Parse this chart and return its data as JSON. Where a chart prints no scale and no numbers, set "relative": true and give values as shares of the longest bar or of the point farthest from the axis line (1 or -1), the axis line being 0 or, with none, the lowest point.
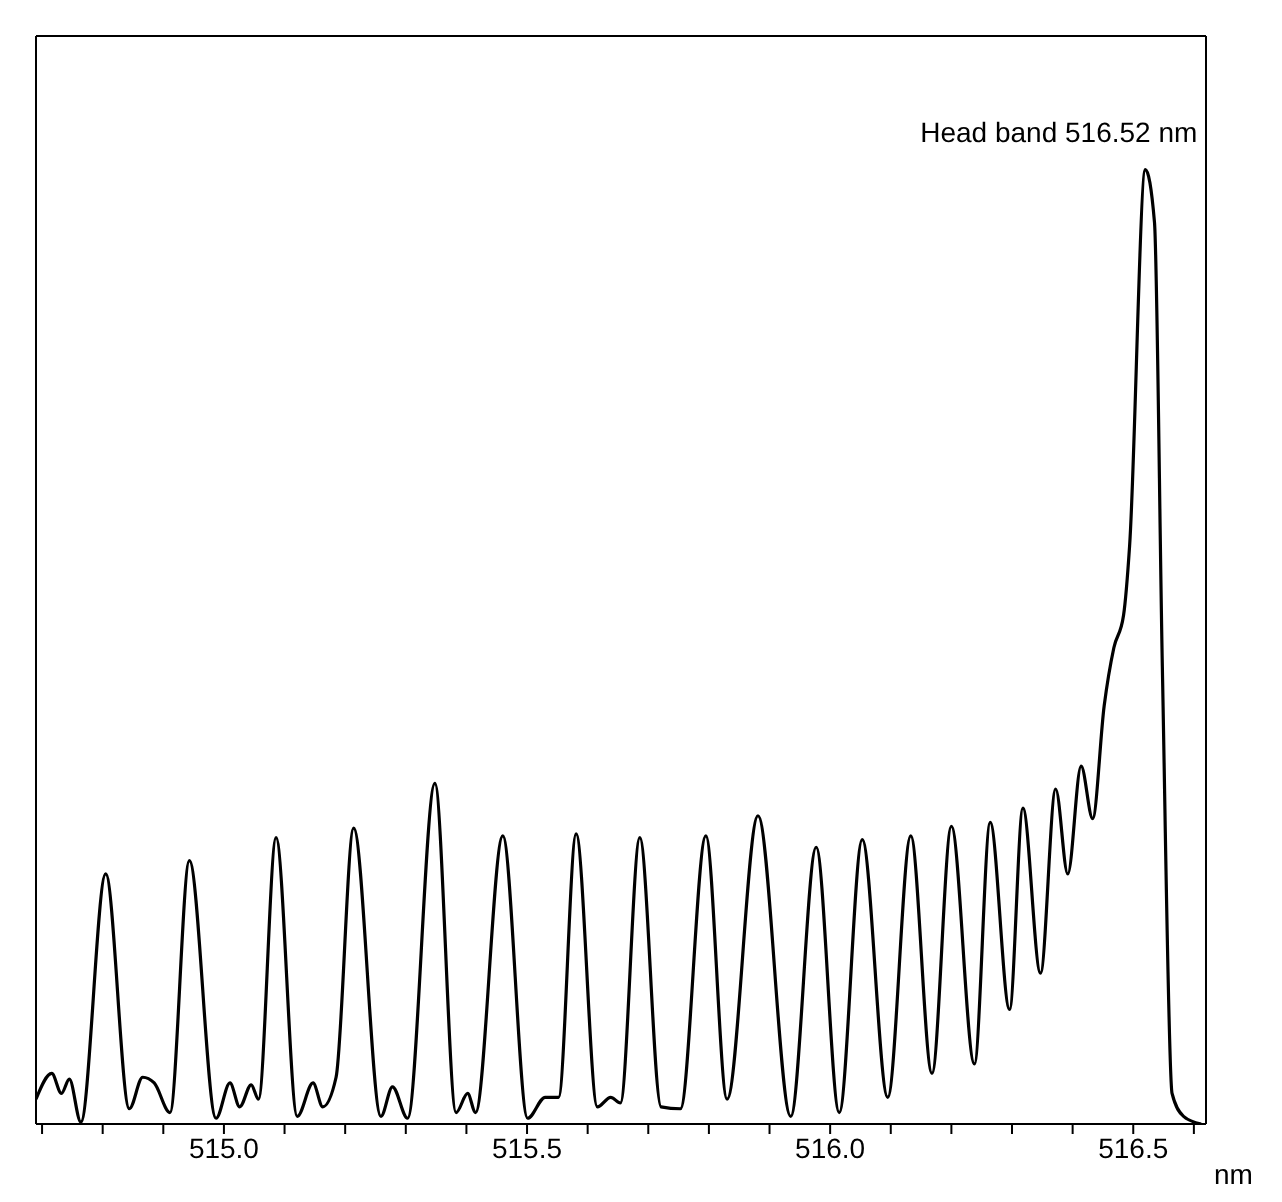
{
  "chart_data": {
    "type": "line",
    "relative": true,
    "xlabel": "nm",
    "color": "#000000",
    "x": [
      514.69,
      514.716,
      514.732,
      514.745,
      514.764,
      514.805,
      514.844,
      514.866,
      514.885,
      514.911,
      514.943,
      514.987,
      515.01,
      515.026,
      515.045,
      515.057,
      515.086,
      515.121,
      515.147,
      515.163,
      515.185,
      515.214,
      515.259,
      515.278,
      515.303,
      515.348,
      515.383,
      515.402,
      515.415,
      515.46,
      515.501,
      515.53,
      515.552,
      515.581,
      515.616,
      515.638,
      515.654,
      515.686,
      515.721,
      515.753,
      515.795,
      515.83,
      515.881,
      515.935,
      515.977,
      516.015,
      516.053,
      516.095,
      516.133,
      516.168,
      516.2,
      516.238,
      516.264,
      516.296,
      516.318,
      516.347,
      516.372,
      516.392,
      516.414,
      516.433,
      516.452,
      516.468,
      516.484,
      516.494,
      516.52,
      516.535,
      516.548,
      516.564,
      516.583,
      516.612
    ],
    "values": [
      0.026,
      0.053,
      0.032,
      0.047,
      0.002,
      0.262,
      0.016,
      0.049,
      0.043,
      0.012,
      0.276,
      0.006,
      0.043,
      0.018,
      0.041,
      0.026,
      0.3,
      0.008,
      0.043,
      0.018,
      0.049,
      0.31,
      0.008,
      0.039,
      0.006,
      0.357,
      0.012,
      0.032,
      0.012,
      0.302,
      0.006,
      0.028,
      0.028,
      0.304,
      0.018,
      0.028,
      0.022,
      0.3,
      0.018,
      0.016,
      0.302,
      0.026,
      0.323,
      0.008,
      0.29,
      0.012,
      0.298,
      0.028,
      0.302,
      0.053,
      0.312,
      0.063,
      0.316,
      0.12,
      0.331,
      0.158,
      0.351,
      0.262,
      0.375,
      0.32,
      0.438,
      0.499,
      0.533,
      0.606,
      1,
      0.945,
      0.479,
      0.032,
      0.008,
      0
    ],
    "xlim": [
      514.69,
      516.62
    ],
    "xticks": [
      {
        "value": 514.7,
        "label": null
      },
      {
        "value": 514.8,
        "label": null
      },
      {
        "value": 514.9,
        "label": null
      },
      {
        "value": 515.0,
        "label": "515.0"
      },
      {
        "value": 515.1,
        "label": null
      },
      {
        "value": 515.2,
        "label": null
      },
      {
        "value": 515.3,
        "label": null
      },
      {
        "value": 515.4,
        "label": null
      },
      {
        "value": 515.5,
        "label": "515.5"
      },
      {
        "value": 515.6,
        "label": null
      },
      {
        "value": 515.7,
        "label": null
      },
      {
        "value": 515.8,
        "label": null
      },
      {
        "value": 515.9,
        "label": null
      },
      {
        "value": 516.0,
        "label": "516.0"
      },
      {
        "value": 516.1,
        "label": null
      },
      {
        "value": 516.2,
        "label": null
      },
      {
        "value": 516.3,
        "label": null
      },
      {
        "value": 516.4,
        "label": null
      },
      {
        "value": 516.5,
        "label": "516.5"
      },
      {
        "value": 516.6,
        "label": null
      }
    ],
    "annotations": [
      {
        "text": "Head band 516.52 nm",
        "x": 516.52,
        "y": 1
      }
    ],
    "grid": false,
    "legend": false,
    "marker": "none",
    "line_style": "solid"
  }
}
